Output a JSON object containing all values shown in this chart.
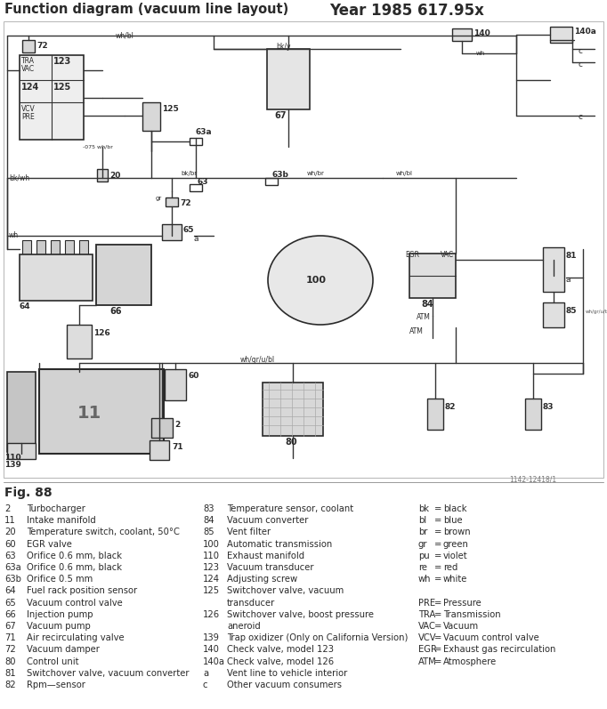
{
  "title_left": "Function diagram (vacuum line layout)",
  "title_right": "Year 1985 617.95x",
  "fig_label": "Fig. 88",
  "figure_number": "1142-12418/1",
  "bg_color": "#ffffff",
  "diagram_color": "#2a2a2a",
  "legend_col1": [
    [
      "2",
      "Turbocharger"
    ],
    [
      "11",
      "Intake manifold"
    ],
    [
      "20",
      "Temperature switch, coolant, 50°C"
    ],
    [
      "60",
      "EGR valve"
    ],
    [
      "63",
      "Orifice 0.6 mm, black"
    ],
    [
      "63a",
      "Orifice 0.6 mm, black"
    ],
    [
      "63b",
      "Orifice 0.5 mm"
    ],
    [
      "64",
      "Fuel rack position sensor"
    ],
    [
      "65",
      "Vacuum control valve"
    ],
    [
      "66",
      "Injection pump"
    ],
    [
      "67",
      "Vacuum pump"
    ],
    [
      "71",
      "Air recirculating valve"
    ],
    [
      "72",
      "Vacuum damper"
    ],
    [
      "80",
      "Control unit"
    ],
    [
      "81",
      "Switchover valve, vacuum converter"
    ],
    [
      "82",
      "Rpm—sensor"
    ]
  ],
  "legend_col2": [
    [
      "83",
      "Temperature sensor, coolant"
    ],
    [
      "84",
      "Vacuum converter"
    ],
    [
      "85",
      "Vent filter"
    ],
    [
      "100",
      "Automatic transmission"
    ],
    [
      "110",
      "Exhaust manifold"
    ],
    [
      "123",
      "Vacuum transducer"
    ],
    [
      "124",
      "Adjusting screw"
    ],
    [
      "125",
      "Switchover valve, vacuum"
    ],
    [
      "",
      "transducer"
    ],
    [
      "126",
      "Switchover valve, boost pressure"
    ],
    [
      "",
      "aneroid"
    ],
    [
      "139",
      "Trap oxidizer (Only on California Version)"
    ],
    [
      "140",
      "Check valve, model 123"
    ],
    [
      "140a",
      "Check valve, model 126"
    ],
    [
      "a",
      "Vent line to vehicle interior"
    ],
    [
      "c",
      "Other vacuum consumers"
    ]
  ],
  "legend_col3": [
    [
      "bk = black",
      ""
    ],
    [
      "bl  = blue",
      ""
    ],
    [
      "br  = brown",
      ""
    ],
    [
      "gr  = green",
      ""
    ],
    [
      "pu = violet",
      ""
    ],
    [
      "re  = red",
      ""
    ],
    [
      "wh = white",
      ""
    ],
    [
      "",
      ""
    ],
    [
      "PRE = Pressure",
      ""
    ],
    [
      "TRA = Transmission",
      ""
    ],
    [
      "VAC = Vacuum",
      ""
    ],
    [
      "VCV = Vacuum control valve",
      ""
    ],
    [
      "EGR = Exhaust gas recirculation",
      ""
    ],
    [
      "ATM = Atmosphere",
      ""
    ]
  ]
}
